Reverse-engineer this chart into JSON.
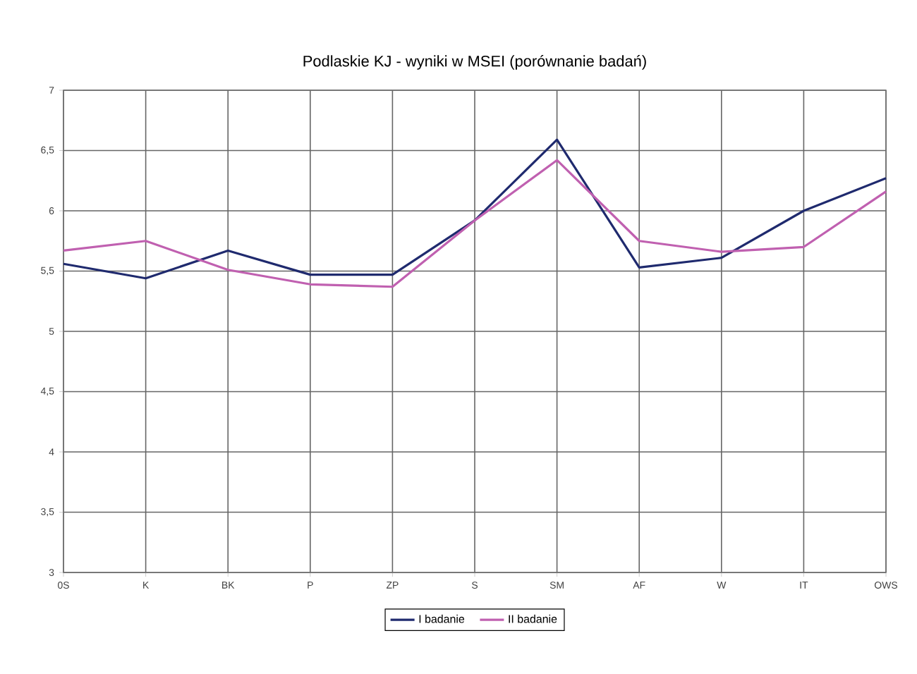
{
  "chart_data": {
    "type": "line",
    "title": "Podlaskie KJ - wyniki w MSEI (porównanie badań)",
    "categories": [
      "0S",
      "K",
      "BK",
      "P",
      "ZP",
      "S",
      "SM",
      "AF",
      "W",
      "IT",
      "OWS"
    ],
    "series": [
      {
        "name": "I badanie",
        "color": "#1f2a6e",
        "values": [
          5.56,
          5.44,
          5.67,
          5.47,
          5.47,
          5.92,
          6.59,
          5.53,
          5.61,
          6.0,
          6.27
        ]
      },
      {
        "name": "II badanie",
        "color": "#c060b0",
        "values": [
          5.67,
          5.75,
          5.51,
          5.39,
          5.37,
          5.92,
          6.42,
          5.75,
          5.66,
          5.7,
          6.16
        ]
      }
    ],
    "ylim": [
      3,
      7
    ],
    "yticks": [
      3,
      {
        "value": 3.5,
        "label": "3,5"
      },
      4,
      {
        "value": 4.5,
        "label": "4,5"
      },
      5,
      {
        "value": 5.5,
        "label": "5,5"
      },
      6,
      {
        "value": 6.5,
        "label": "6,5"
      },
      7
    ],
    "grid": true,
    "legend": "bottom",
    "marker": "none",
    "line_style": "solid"
  }
}
